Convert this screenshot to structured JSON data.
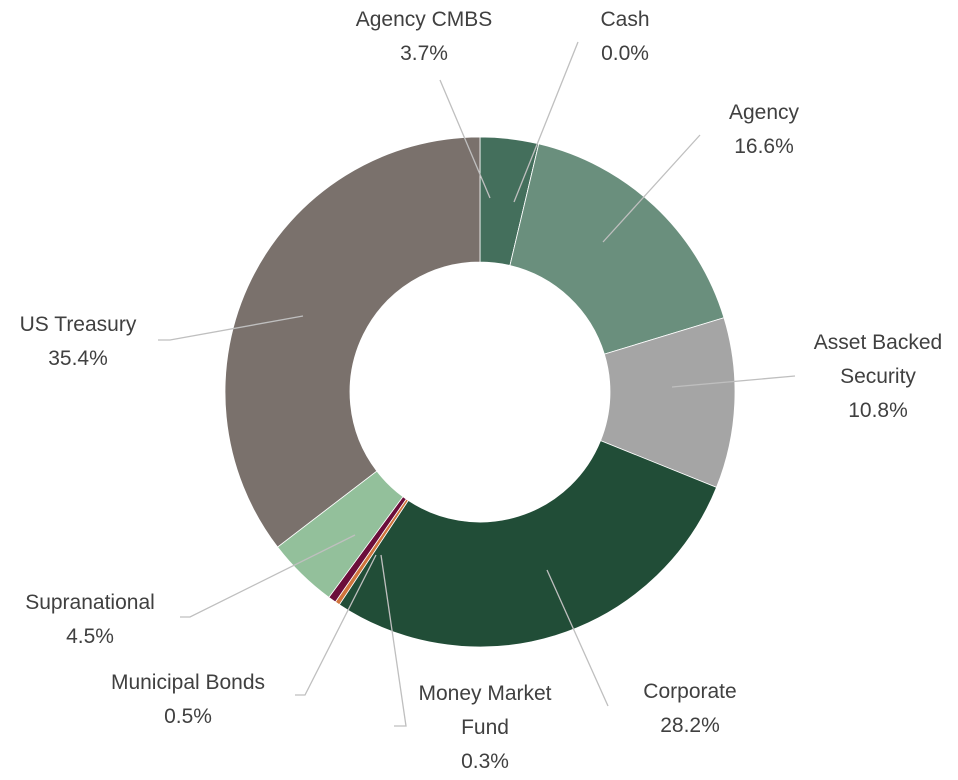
{
  "chart_data": {
    "type": "pie",
    "categories": [
      "Agency CMBS",
      "Cash",
      "Agency",
      "Asset Backed Security",
      "Corporate",
      "Money Market Fund",
      "Municipal Bonds",
      "Supranational",
      "US Treasury"
    ],
    "values": [
      3.7,
      0.0,
      16.6,
      10.8,
      28.2,
      0.3,
      0.5,
      4.5,
      35.4
    ],
    "value_labels": [
      "3.7%",
      "0.0%",
      "16.6%",
      "10.8%",
      "28.2%",
      "0.3%",
      "0.5%",
      "4.5%",
      "35.4%"
    ],
    "colors": [
      "#446f5c",
      "#2e5e48",
      "#6a8f7d",
      "#a5a5a5",
      "#214d37",
      "#d0743c",
      "#6b0d3a",
      "#93c09b",
      "#7a716c"
    ]
  }
}
